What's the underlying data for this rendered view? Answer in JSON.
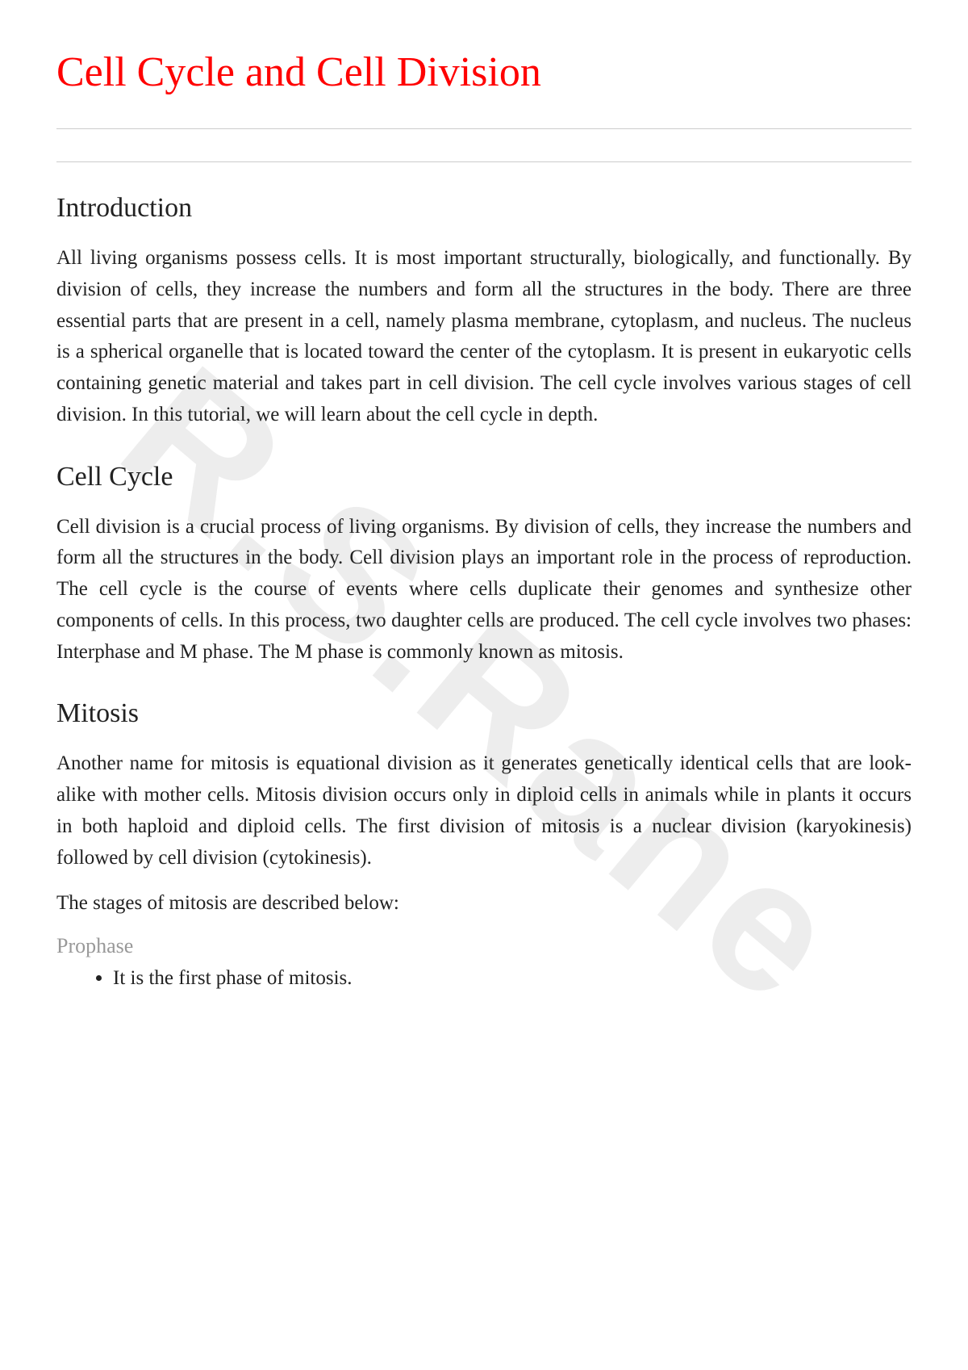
{
  "title": {
    "text": "Cell Cycle and Cell Division",
    "color": "#ff0000"
  },
  "watermark": "R.S.Rane",
  "sections": [
    {
      "heading": "Introduction",
      "body": "All living organisms possess cells. It is most important structurally, biologically, and functionally. By division of cells, they increase the numbers and form all the structures in the body. There are three essential parts that are present in a cell, namely plasma membrane, cytoplasm, and nucleus. The nucleus is a spherical organelle that is located toward the center of the cytoplasm. It is present in eukaryotic cells containing genetic material and takes part in cell division. The cell cycle involves various stages of cell division. In this tutorial, we will learn about the cell cycle in depth."
    },
    {
      "heading": "Cell Cycle",
      "body": "Cell division is a crucial process of living organisms. By division of cells, they increase the numbers and form all the structures in the body. Cell division plays an important role in the process of reproduction. The cell cycle is the course of events where cells duplicate their genomes and synthesize other components of cells. In this process, two daughter cells are produced. The cell cycle involves two phases: Interphase and M phase. The M phase is commonly known as mitosis."
    },
    {
      "heading": "Mitosis",
      "body": "Another name for mitosis is equational division as it generates genetically identical cells that are look-alike with mother cells. Mitosis division occurs only in diploid cells in animals while in plants it occurs in both haploid and diploid cells. The first division of mitosis is a nuclear division (karyokinesis) followed by cell division (cytokinesis).",
      "subtext": "The stages of mitosis are described below:",
      "subsection": {
        "heading": "Prophase",
        "items": [
          "It is the first phase of mitosis."
        ]
      }
    }
  ]
}
